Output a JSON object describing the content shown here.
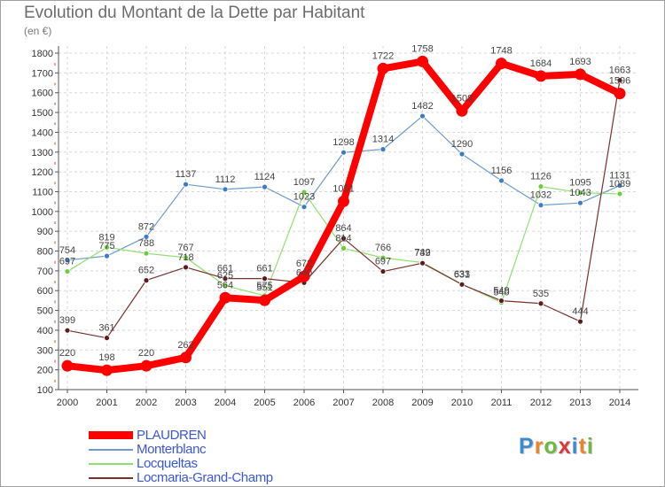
{
  "title": "Evolution du Montant de la Dette par Habitant",
  "subtitle": "(en €)",
  "logo": {
    "text": "Proxiti",
    "colors": [
      "#3c8bd0",
      "#e8862e",
      "#6cb843",
      "#d63a3a",
      "#3c8bd0",
      "#e8862e",
      "#6cb843"
    ]
  },
  "chart_data": {
    "type": "line",
    "title": "Evolution du Montant de la Dette par Habitant",
    "ylabel": "(en €)",
    "xlabel": "",
    "x": [
      "2000",
      "2001",
      "2002",
      "2003",
      "2004",
      "2005",
      "2006",
      "2007",
      "2008",
      "2009",
      "2010",
      "2011",
      "2012",
      "2013",
      "2014"
    ],
    "ylim": [
      100,
      1800
    ],
    "yticks": [
      100,
      200,
      300,
      400,
      500,
      600,
      700,
      800,
      900,
      1000,
      1100,
      1200,
      1300,
      1400,
      1500,
      1600,
      1700,
      1800
    ],
    "grid": true,
    "legend": "bottom-left",
    "series": [
      {
        "name": "PLAUDREN",
        "color": "#ff0000",
        "values": [
          220,
          198,
          220,
          262,
          564,
          551,
          672,
          1051,
          1722,
          1758,
          1508,
          1748,
          1684,
          1693,
          1596
        ]
      },
      {
        "name": "Monterblanc",
        "color": "#6b9bd1",
        "values": [
          754,
          775,
          872,
          1137,
          1112,
          1124,
          1023,
          1298,
          1314,
          1482,
          1290,
          1156,
          1032,
          1043,
          1131
        ]
      },
      {
        "name": "Locqueltas",
        "color": "#90e070",
        "values": [
          697,
          819,
          788,
          767,
          625,
          575,
          1097,
          814,
          766,
          742,
          633,
          540,
          1126,
          1095,
          1089
        ]
      },
      {
        "name": "Locmaria-Grand-Champ",
        "color": "#7a3030",
        "values": [
          399,
          361,
          652,
          718,
          661,
          661,
          640,
          864,
          697,
          739,
          631,
          549,
          535,
          444,
          1663
        ]
      }
    ],
    "data_labels": [
      [
        "220",
        "198",
        "220",
        "262",
        "564",
        "551",
        "672",
        "1051",
        "1722",
        "1758",
        "1508",
        "1748",
        "1684",
        "1693",
        "1596"
      ],
      [
        "754",
        "775",
        "872",
        "1137",
        "1112",
        "1124",
        "1023",
        "1298",
        "1314",
        "1482",
        "1290",
        "1156",
        "1032",
        "1043",
        "1131"
      ],
      [
        "697",
        "819",
        "788",
        "767",
        "625",
        "575",
        "1097",
        "814",
        "766",
        "742",
        "633",
        "540",
        "1126",
        "1095",
        "1089"
      ],
      [
        "399",
        "361",
        "652",
        "718",
        "661",
        "661",
        "640",
        "864",
        "697",
        "739",
        "631",
        "549",
        "535",
        "444",
        "1663"
      ]
    ]
  },
  "legend": {
    "items": [
      {
        "label": "PLAUDREN",
        "color": "#ff0000"
      },
      {
        "label": "Monterblanc",
        "color": "#6b9bd1"
      },
      {
        "label": "Locqueltas",
        "color": "#90e070"
      },
      {
        "label": "Locmaria-Grand-Champ",
        "color": "#7a3030"
      }
    ]
  }
}
